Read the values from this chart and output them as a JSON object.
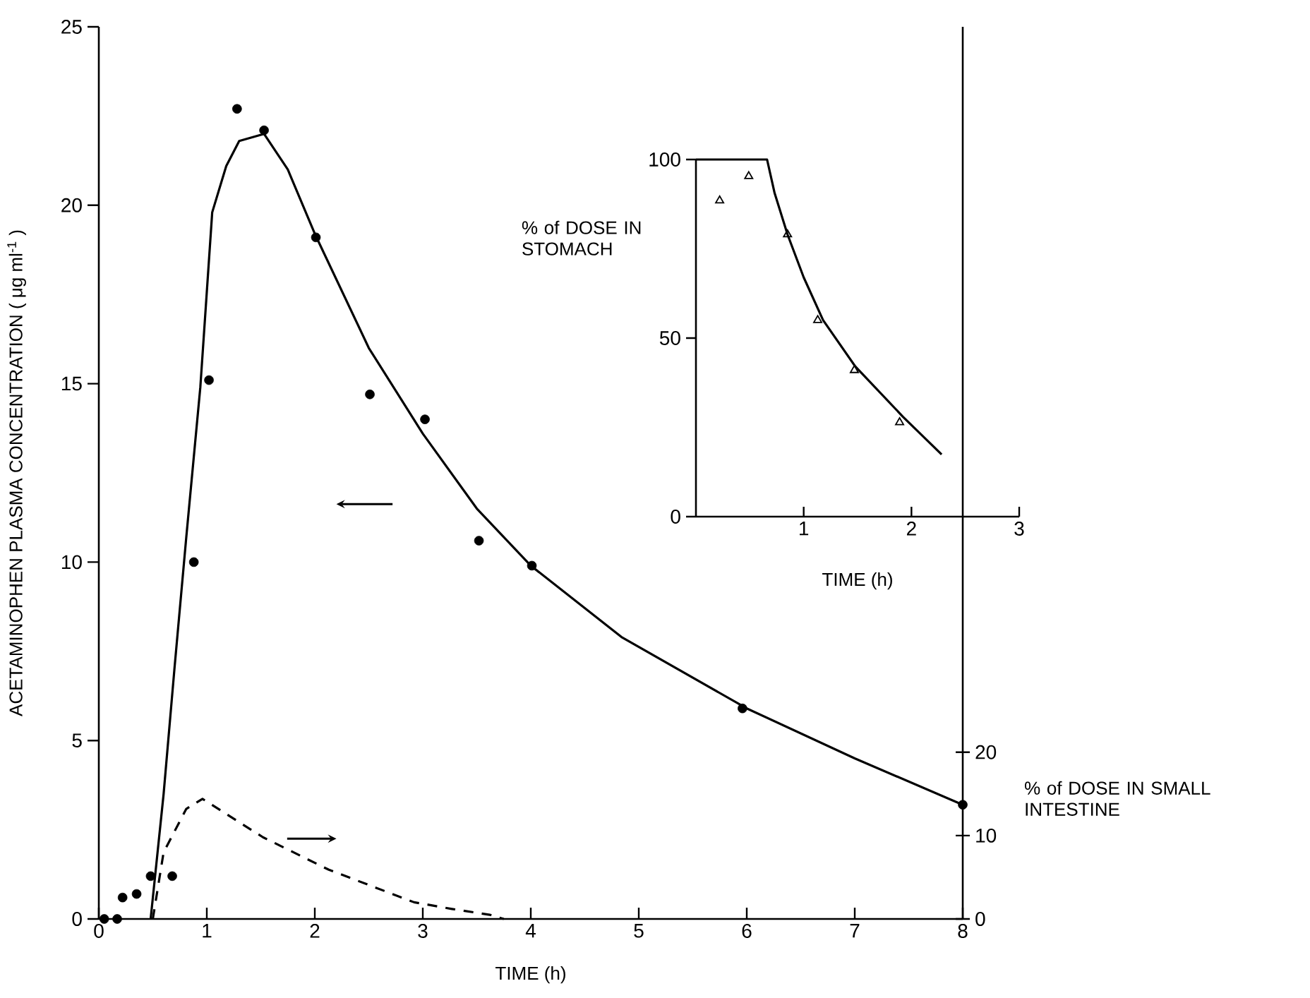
{
  "chart_data": [
    {
      "type": "line",
      "xlabel": "TIME (h)",
      "ylabel": "ACETAMINOPHEN PLASMA CONCENTRATION ( μg ml$^{-1}$ )",
      "y2label": "% of DOSE IN SMALL INTESTINE",
      "xlim": [
        0,
        8
      ],
      "xticks": [
        0,
        1,
        2,
        3,
        4,
        5,
        6,
        7,
        8
      ],
      "ylim": [
        0,
        25
      ],
      "yticks": [
        0,
        5,
        10,
        15,
        20,
        25
      ],
      "y2lim": [
        0,
        107
      ],
      "y2ticks": [
        0,
        10,
        20
      ],
      "series": [
        {
          "type": "scatter",
          "color": "#000000",
          "marker": "circle",
          "x": [
            0.05,
            0.17,
            0.22,
            0.35,
            0.48,
            0.68,
            0.88,
            1.02,
            1.28,
            1.53,
            2.01,
            2.51,
            3.02,
            3.52,
            4.01,
            5.96,
            8.0
          ],
          "values": [
            0,
            0,
            0.6,
            0.7,
            1.2,
            1.2,
            10.0,
            15.1,
            22.7,
            22.1,
            19.1,
            14.7,
            14.0,
            10.6,
            9.9,
            5.9,
            3.2
          ]
        },
        {
          "type": "line",
          "color": "#000000",
          "line_style": "solid",
          "x": [
            0.48,
            0.6,
            0.7,
            0.81,
            0.94,
            1.05,
            1.18,
            1.3,
            1.53,
            1.75,
            2.0,
            2.5,
            3.0,
            3.5,
            4.0,
            4.84,
            6.0,
            7.0,
            8.0
          ],
          "values": [
            0,
            3.5,
            7,
            10.7,
            14.9,
            19.8,
            21.1,
            21.8,
            22.0,
            21.0,
            19.2,
            16.0,
            13.6,
            11.5,
            9.9,
            7.9,
            5.9,
            4.5,
            3.2
          ]
        },
        {
          "type": "line",
          "axis": "y2",
          "color": "#000000",
          "line_style": "dashed",
          "x": [
            0.5,
            0.6,
            0.81,
            0.96,
            1.52,
            2.13,
            2.92,
            3.27,
            3.62,
            3.75
          ],
          "values": [
            0,
            8,
            13.2,
            14.4,
            9.8,
            5.9,
            2.0,
            1.2,
            0.5,
            0
          ]
        }
      ]
    },
    {
      "type": "line",
      "xlabel": "TIME (h)",
      "ylabel": "% of DOSE IN STOMACH",
      "xlim": [
        0,
        3
      ],
      "xticks": [
        1,
        2,
        3
      ],
      "ylim": [
        0,
        100
      ],
      "yticks": [
        0,
        50,
        100
      ],
      "series": [
        {
          "type": "scatter",
          "color": "#000000",
          "marker": "triangle",
          "x": [
            0.22,
            0.49,
            0.85,
            1.13,
            1.47,
            1.89
          ],
          "values": [
            88.5,
            95.3,
            79,
            55,
            41,
            26.4
          ]
        },
        {
          "type": "line",
          "color": "#000000",
          "line_style": "solid",
          "x": [
            0,
            0.66,
            0.73,
            0.85,
            1.0,
            1.18,
            1.48,
            1.92,
            2.28
          ],
          "values": [
            100,
            100,
            90.6,
            79,
            67,
            55,
            42,
            28,
            17.4
          ]
        }
      ]
    }
  ]
}
